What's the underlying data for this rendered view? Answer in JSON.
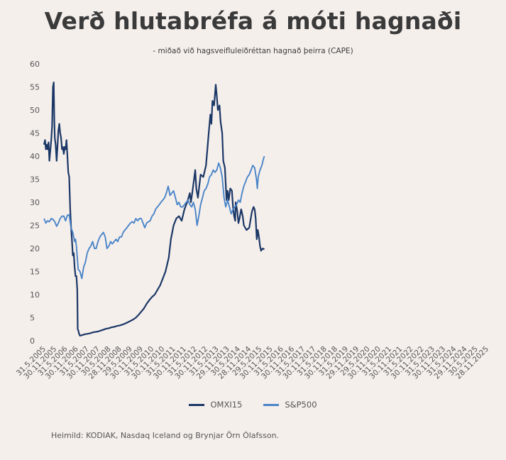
{
  "chart_data": {
    "type": "line",
    "title": "Verð hlutabréfa á móti hagnaði",
    "subtitle": "- miðað við hagsveifluleiðréttan hagnað þeirra (CAPE)",
    "source": "Heimild: KODIAK, Nasdaq Iceland og Brynjar Örn Ólafsson.",
    "ylim": [
      0,
      60
    ],
    "yticks": [
      "0",
      "5",
      "10",
      "15",
      "20",
      "25",
      "30",
      "35",
      "40",
      "45",
      "50",
      "55",
      "60"
    ],
    "grid": false,
    "legend_position": "bottom",
    "x_tick_labels": [
      "31.5.2005",
      "30.11.2005",
      "31.5.2006",
      "30.11.2006",
      "31.5.2007",
      "30.11.2007",
      "30.5.2008",
      "28.11.2008",
      "29.5.2009",
      "30.11.2009",
      "31.5.2010",
      "30.11.2010",
      "31.5.2011",
      "30.11.2011",
      "31.5.2012",
      "30.11.2012",
      "31.5.2013",
      "29.11.2013",
      "30.5.2014",
      "28.11.2014",
      "29.5.2015",
      "30.11.2015",
      "31.5.2016",
      "30.11.2016",
      "31.5.2017",
      "30.11.2017",
      "31.5.2018",
      "30.11.2018",
      "31.5.2019",
      "29.11.2019",
      "29.5.2020",
      "30.11.2020",
      "31.5.2021",
      "30.11.2021",
      "31.5.2022",
      "30.11.2022",
      "31.5.2023",
      "30.11.2023",
      "31.5.2024",
      "29.11.2024",
      "30.5.2025",
      "28.11.2025"
    ],
    "series": [
      {
        "name": "OMXI15",
        "color": "#1b3766",
        "points": [
          [
            0,
            42.5
          ],
          [
            0.1,
            43.5
          ],
          [
            0.17,
            41.5
          ],
          [
            0.25,
            42.5
          ],
          [
            0.33,
            41.5
          ],
          [
            0.42,
            43
          ],
          [
            0.5,
            39
          ],
          [
            0.58,
            41
          ],
          [
            0.67,
            43.5
          ],
          [
            0.75,
            46.5
          ],
          [
            0.83,
            55
          ],
          [
            0.9,
            56
          ],
          [
            0.95,
            48
          ],
          [
            1.0,
            44
          ],
          [
            1.08,
            42.5
          ],
          [
            1.17,
            39
          ],
          [
            1.25,
            42
          ],
          [
            1.33,
            45.5
          ],
          [
            1.42,
            47
          ],
          [
            1.5,
            45
          ],
          [
            1.58,
            44
          ],
          [
            1.67,
            41.5
          ],
          [
            1.75,
            42
          ],
          [
            1.83,
            40.5
          ],
          [
            1.92,
            42
          ],
          [
            2.0,
            41.5
          ],
          [
            2.08,
            43.5
          ],
          [
            2.17,
            40
          ],
          [
            2.25,
            36.5
          ],
          [
            2.33,
            35.5
          ],
          [
            2.42,
            29
          ],
          [
            2.5,
            25
          ],
          [
            2.58,
            22
          ],
          [
            2.67,
            18.5
          ],
          [
            2.75,
            19
          ],
          [
            2.83,
            16
          ],
          [
            2.92,
            14
          ],
          [
            3.0,
            14
          ],
          [
            3.08,
            11
          ],
          [
            3.12,
            2.5
          ],
          [
            3.17,
            2.3
          ],
          [
            3.25,
            1.5
          ],
          [
            3.33,
            1.1
          ],
          [
            3.5,
            1.2
          ],
          [
            3.75,
            1.4
          ],
          [
            4.0,
            1.5
          ],
          [
            4.25,
            1.6
          ],
          [
            4.5,
            1.8
          ],
          [
            4.75,
            1.9
          ],
          [
            5.0,
            2.0
          ],
          [
            5.25,
            2.2
          ],
          [
            5.5,
            2.4
          ],
          [
            5.75,
            2.6
          ],
          [
            6.0,
            2.7
          ],
          [
            6.25,
            2.9
          ],
          [
            6.5,
            3.0
          ],
          [
            6.75,
            3.2
          ],
          [
            7.0,
            3.3
          ],
          [
            7.25,
            3.5
          ],
          [
            7.5,
            3.7
          ],
          [
            7.75,
            4.0
          ],
          [
            8.0,
            4.3
          ],
          [
            8.25,
            4.6
          ],
          [
            8.5,
            5.0
          ],
          [
            8.75,
            5.6
          ],
          [
            9.0,
            6.3
          ],
          [
            9.25,
            7.0
          ],
          [
            9.5,
            8.0
          ],
          [
            9.75,
            8.8
          ],
          [
            10.0,
            9.5
          ],
          [
            10.25,
            10.0
          ],
          [
            10.5,
            11.0
          ],
          [
            10.75,
            12.0
          ],
          [
            11.0,
            13.5
          ],
          [
            11.25,
            15.0
          ],
          [
            11.4,
            16.5
          ],
          [
            11.55,
            18.0
          ],
          [
            11.75,
            22.0
          ],
          [
            12.0,
            25.0
          ],
          [
            12.25,
            26.5
          ],
          [
            12.5,
            27.0
          ],
          [
            12.75,
            26.0
          ],
          [
            13.0,
            28.5
          ],
          [
            13.25,
            30.0
          ],
          [
            13.5,
            32.0
          ],
          [
            13.6,
            30.0
          ],
          [
            13.75,
            32.5
          ],
          [
            14.0,
            37.0
          ],
          [
            14.1,
            33.0
          ],
          [
            14.25,
            31.0
          ],
          [
            14.5,
            36.0
          ],
          [
            14.75,
            35.5
          ],
          [
            15.0,
            38.0
          ],
          [
            15.25,
            45.0
          ],
          [
            15.4,
            49.0
          ],
          [
            15.5,
            47.0
          ],
          [
            15.6,
            52.0
          ],
          [
            15.75,
            51.0
          ],
          [
            15.9,
            55.5
          ],
          [
            16.0,
            53.0
          ],
          [
            16.1,
            50.0
          ],
          [
            16.25,
            51.0
          ],
          [
            16.35,
            47.5
          ],
          [
            16.5,
            45.0
          ],
          [
            16.6,
            39.0
          ],
          [
            16.75,
            37.5
          ],
          [
            16.9,
            30.5
          ],
          [
            17.0,
            32.5
          ],
          [
            17.1,
            30.5
          ],
          [
            17.25,
            33.0
          ],
          [
            17.4,
            32.5
          ],
          [
            17.5,
            29.0
          ],
          [
            17.6,
            27.0
          ],
          [
            17.7,
            26.0
          ],
          [
            17.75,
            30.0
          ],
          [
            17.9,
            28.0
          ],
          [
            18.0,
            25.5
          ],
          [
            18.1,
            26.5
          ],
          [
            18.25,
            28.5
          ],
          [
            18.4,
            27.0
          ],
          [
            18.5,
            25.0
          ],
          [
            18.75,
            24.0
          ],
          [
            19.0,
            24.5
          ],
          [
            19.25,
            28.0
          ],
          [
            19.4,
            29.0
          ],
          [
            19.5,
            28.5
          ],
          [
            19.6,
            26.5
          ],
          [
            19.7,
            22.0
          ],
          [
            19.8,
            24.0
          ],
          [
            19.9,
            22.5
          ],
          [
            20.0,
            20.5
          ],
          [
            20.1,
            19.5
          ],
          [
            20.25,
            20.0
          ],
          [
            20.4,
            19.8
          ]
        ]
      },
      {
        "name": "S&P500",
        "color": "#4a85c8",
        "points": [
          [
            0,
            26.5
          ],
          [
            0.17,
            25.5
          ],
          [
            0.33,
            26.0
          ],
          [
            0.5,
            25.8
          ],
          [
            0.67,
            26.5
          ],
          [
            0.83,
            26.3
          ],
          [
            1.0,
            25.8
          ],
          [
            1.17,
            24.8
          ],
          [
            1.33,
            25.5
          ],
          [
            1.5,
            26.5
          ],
          [
            1.67,
            27.0
          ],
          [
            1.83,
            27.0
          ],
          [
            2.0,
            26.0
          ],
          [
            2.17,
            27.2
          ],
          [
            2.33,
            27.3
          ],
          [
            2.5,
            24.5
          ],
          [
            2.67,
            23.5
          ],
          [
            2.83,
            21.5
          ],
          [
            2.92,
            22.0
          ],
          [
            3.0,
            20.5
          ],
          [
            3.08,
            18.0
          ],
          [
            3.17,
            15.5
          ],
          [
            3.33,
            15.0
          ],
          [
            3.5,
            13.5
          ],
          [
            3.67,
            16.0
          ],
          [
            3.83,
            17.0
          ],
          [
            4.0,
            19.0
          ],
          [
            4.17,
            20.0
          ],
          [
            4.33,
            20.5
          ],
          [
            4.5,
            21.5
          ],
          [
            4.67,
            20.0
          ],
          [
            4.83,
            20.0
          ],
          [
            5.0,
            21.5
          ],
          [
            5.17,
            22.5
          ],
          [
            5.33,
            23.0
          ],
          [
            5.5,
            23.5
          ],
          [
            5.67,
            22.5
          ],
          [
            5.83,
            20.0
          ],
          [
            6.0,
            20.5
          ],
          [
            6.17,
            21.5
          ],
          [
            6.33,
            21.0
          ],
          [
            6.5,
            21.5
          ],
          [
            6.67,
            22.0
          ],
          [
            6.83,
            21.5
          ],
          [
            7.0,
            22.5
          ],
          [
            7.17,
            22.5
          ],
          [
            7.33,
            23.5
          ],
          [
            7.5,
            24.0
          ],
          [
            7.67,
            24.5
          ],
          [
            7.83,
            25.0
          ],
          [
            8.0,
            25.5
          ],
          [
            8.17,
            25.8
          ],
          [
            8.33,
            25.5
          ],
          [
            8.5,
            26.5
          ],
          [
            8.67,
            26.0
          ],
          [
            8.83,
            26.5
          ],
          [
            9.0,
            26.5
          ],
          [
            9.17,
            25.5
          ],
          [
            9.33,
            24.5
          ],
          [
            9.5,
            25.5
          ],
          [
            9.67,
            25.8
          ],
          [
            9.83,
            26.0
          ],
          [
            10.0,
            27.0
          ],
          [
            10.17,
            27.5
          ],
          [
            10.33,
            28.5
          ],
          [
            10.5,
            29.0
          ],
          [
            10.67,
            29.5
          ],
          [
            10.83,
            30.0
          ],
          [
            11.0,
            30.5
          ],
          [
            11.17,
            31.0
          ],
          [
            11.33,
            32.0
          ],
          [
            11.5,
            33.5
          ],
          [
            11.67,
            31.5
          ],
          [
            11.83,
            32.0
          ],
          [
            12.0,
            32.5
          ],
          [
            12.17,
            31.0
          ],
          [
            12.33,
            29.5
          ],
          [
            12.5,
            30.0
          ],
          [
            12.67,
            29.0
          ],
          [
            12.83,
            29.0
          ],
          [
            13.0,
            29.5
          ],
          [
            13.17,
            30.0
          ],
          [
            13.33,
            30.5
          ],
          [
            13.5,
            29.5
          ],
          [
            13.67,
            29.0
          ],
          [
            13.83,
            30.0
          ],
          [
            14.0,
            28.5
          ],
          [
            14.17,
            25.0
          ],
          [
            14.33,
            27.0
          ],
          [
            14.5,
            29.5
          ],
          [
            14.67,
            31.0
          ],
          [
            14.83,
            32.5
          ],
          [
            15.0,
            33.0
          ],
          [
            15.17,
            34.0
          ],
          [
            15.33,
            35.5
          ],
          [
            15.5,
            36.0
          ],
          [
            15.67,
            37.0
          ],
          [
            15.83,
            36.5
          ],
          [
            16.0,
            37.0
          ],
          [
            16.17,
            38.5
          ],
          [
            16.33,
            37.5
          ],
          [
            16.5,
            35.5
          ],
          [
            16.67,
            31.0
          ],
          [
            16.83,
            29.0
          ],
          [
            17.0,
            30.5
          ],
          [
            17.17,
            29.0
          ],
          [
            17.33,
            27.5
          ],
          [
            17.5,
            28.5
          ],
          [
            17.67,
            29.0
          ],
          [
            17.83,
            29.5
          ],
          [
            18.0,
            30.5
          ],
          [
            18.17,
            30.0
          ],
          [
            18.33,
            32.0
          ],
          [
            18.5,
            33.5
          ],
          [
            18.67,
            34.5
          ],
          [
            18.83,
            35.5
          ],
          [
            19.0,
            36.0
          ],
          [
            19.17,
            37.0
          ],
          [
            19.33,
            38.0
          ],
          [
            19.5,
            37.5
          ],
          [
            19.67,
            35.0
          ],
          [
            19.75,
            33.0
          ],
          [
            19.83,
            35.5
          ],
          [
            20.0,
            37.0
          ],
          [
            20.17,
            38.0
          ],
          [
            20.33,
            39.5
          ],
          [
            20.4,
            40.0
          ]
        ]
      }
    ]
  }
}
